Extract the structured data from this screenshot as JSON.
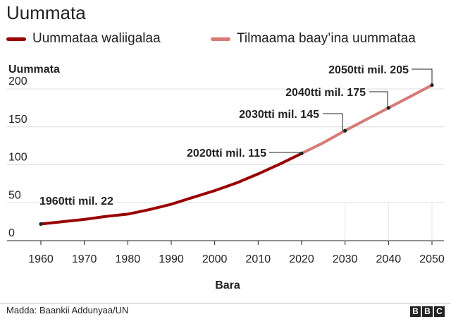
{
  "header": {
    "title": "Uummata"
  },
  "legend": {
    "items": [
      {
        "label": "Uummataa waliigalaa",
        "color": "#990000"
      },
      {
        "label": "Tilmaama baay’ina uummataa",
        "color": "#d67b76"
      }
    ]
  },
  "footer": {
    "source": "Madda: Baankii Addunyaa/UN",
    "logo": [
      "B",
      "B",
      "C"
    ]
  },
  "chart_data": {
    "type": "line",
    "title": "Uummata",
    "xlabel": "Bara",
    "ylabel": "Uummata",
    "xlim": [
      1960,
      2050
    ],
    "ylim": [
      0,
      200
    ],
    "xticks": [
      1960,
      1970,
      1980,
      1990,
      2000,
      2010,
      2020,
      2030,
      2040,
      2050
    ],
    "yticks": [
      0,
      50,
      100,
      150,
      200
    ],
    "grid": "horizontal",
    "legend_position": "top",
    "series": [
      {
        "name": "Uummataa waliigalaa",
        "color": "#990000",
        "x": [
          1960,
          1965,
          1970,
          1975,
          1980,
          1985,
          1990,
          1995,
          2000,
          2005,
          2010,
          2015,
          2020
        ],
        "y": [
          22,
          25,
          28,
          32,
          35,
          41,
          48,
          57,
          66,
          76,
          88,
          101,
          115
        ]
      },
      {
        "name": "Tilmaama baay’ina uummataa",
        "color": "#d67b76",
        "x": [
          2020,
          2025,
          2030,
          2035,
          2040,
          2045,
          2050
        ],
        "y": [
          115,
          129,
          145,
          160,
          175,
          190,
          205
        ]
      }
    ],
    "annotations": [
      {
        "text": "1960tti mil. 22",
        "x": 1960,
        "y": 22
      },
      {
        "text": "2020tti mil. 115",
        "x": 2020,
        "y": 115
      },
      {
        "text": "2030tti mil. 145",
        "x": 2030,
        "y": 145
      },
      {
        "text": "2040tti mil. 175",
        "x": 2040,
        "y": 175
      },
      {
        "text": "2050tti mil. 205",
        "x": 2050,
        "y": 205
      }
    ]
  }
}
